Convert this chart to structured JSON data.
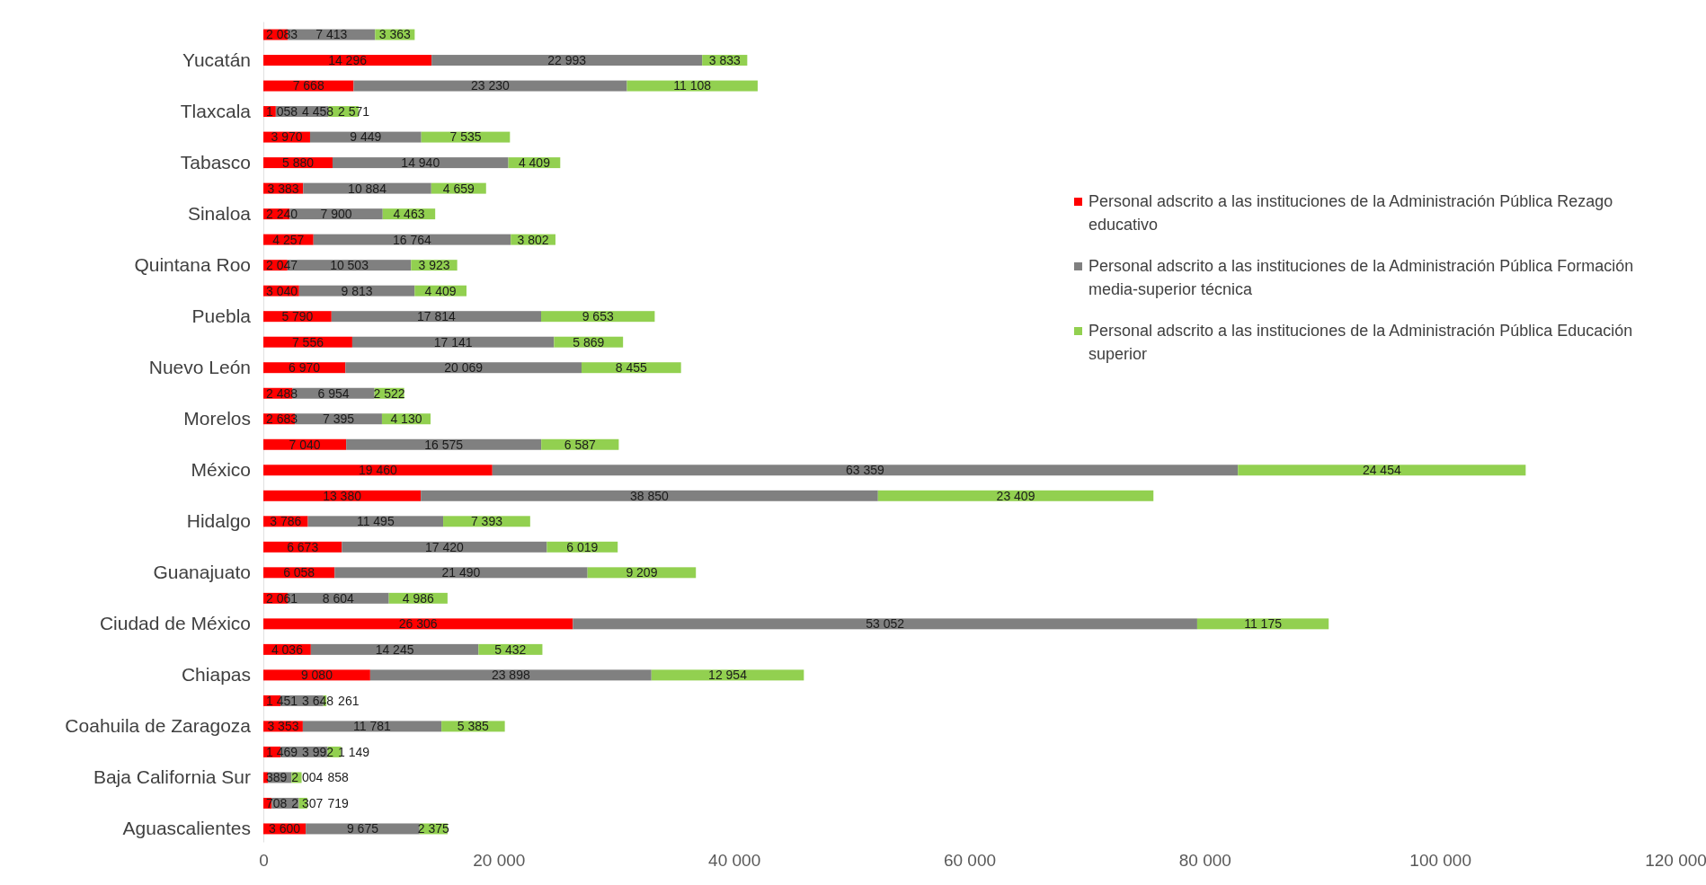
{
  "chart_data": {
    "type": "bar",
    "orientation": "horizontal",
    "stacked": true,
    "data_labels": true,
    "grid": false,
    "legend": "right",
    "categories": [
      null,
      "Yucatán",
      null,
      "Tlaxcala",
      null,
      "Tabasco",
      null,
      "Sinaloa",
      null,
      "Quintana Roo",
      null,
      "Puebla",
      null,
      "Nuevo León",
      null,
      "Morelos",
      null,
      "México",
      null,
      "Hidalgo",
      null,
      "Guanajuato",
      null,
      "Ciudad de México",
      null,
      "Chiapas",
      null,
      "Coahuila de Zaragoza",
      null,
      "Baja California Sur",
      null,
      "Aguascalientes"
    ],
    "xlim": [
      0,
      120000
    ],
    "xticks": [
      {
        "value": 0,
        "label": "0"
      },
      {
        "value": 20000,
        "label": "20 000"
      },
      {
        "value": 40000,
        "label": "40 000"
      },
      {
        "value": 60000,
        "label": "60 000"
      },
      {
        "value": 80000,
        "label": "80 000"
      },
      {
        "value": 100000,
        "label": "100 000"
      },
      {
        "value": 120000,
        "label": "120 000"
      }
    ],
    "series": [
      {
        "name": "Personal adscrito a las instituciones de la Administración Pública Rezago educativo",
        "color": "#ff0000",
        "values": [
          2083,
          14296,
          7668,
          1058,
          3970,
          5880,
          3383,
          2240,
          4257,
          2047,
          3040,
          5790,
          7556,
          6970,
          2488,
          2683,
          7040,
          19460,
          13380,
          3786,
          6673,
          6058,
          2061,
          26306,
          4036,
          9080,
          1451,
          3353,
          1469,
          389,
          708,
          3600
        ]
      },
      {
        "name": "Personal adscrito a las instituciones de la Administración Pública Formación media-superior técnica",
        "color": "#808080",
        "values": [
          7413,
          22993,
          23230,
          4458,
          9449,
          14940,
          10884,
          7900,
          16764,
          10503,
          9813,
          17814,
          17141,
          20069,
          6954,
          7395,
          16575,
          63359,
          38850,
          11495,
          17420,
          21490,
          8604,
          53052,
          14245,
          23898,
          3648,
          11781,
          3992,
          2004,
          2307,
          9675
        ]
      },
      {
        "name": "Personal adscrito a las instituciones de la Administración Pública Educación superior",
        "color": "#92d050",
        "values": [
          3363,
          3833,
          11108,
          2571,
          7535,
          4409,
          4659,
          4463,
          3802,
          3923,
          4409,
          9653,
          5869,
          8455,
          2522,
          4130,
          6587,
          24454,
          23409,
          7393,
          6019,
          9209,
          4986,
          11175,
          5432,
          12954,
          261,
          5385,
          1149,
          858,
          719,
          2375
        ]
      }
    ]
  }
}
